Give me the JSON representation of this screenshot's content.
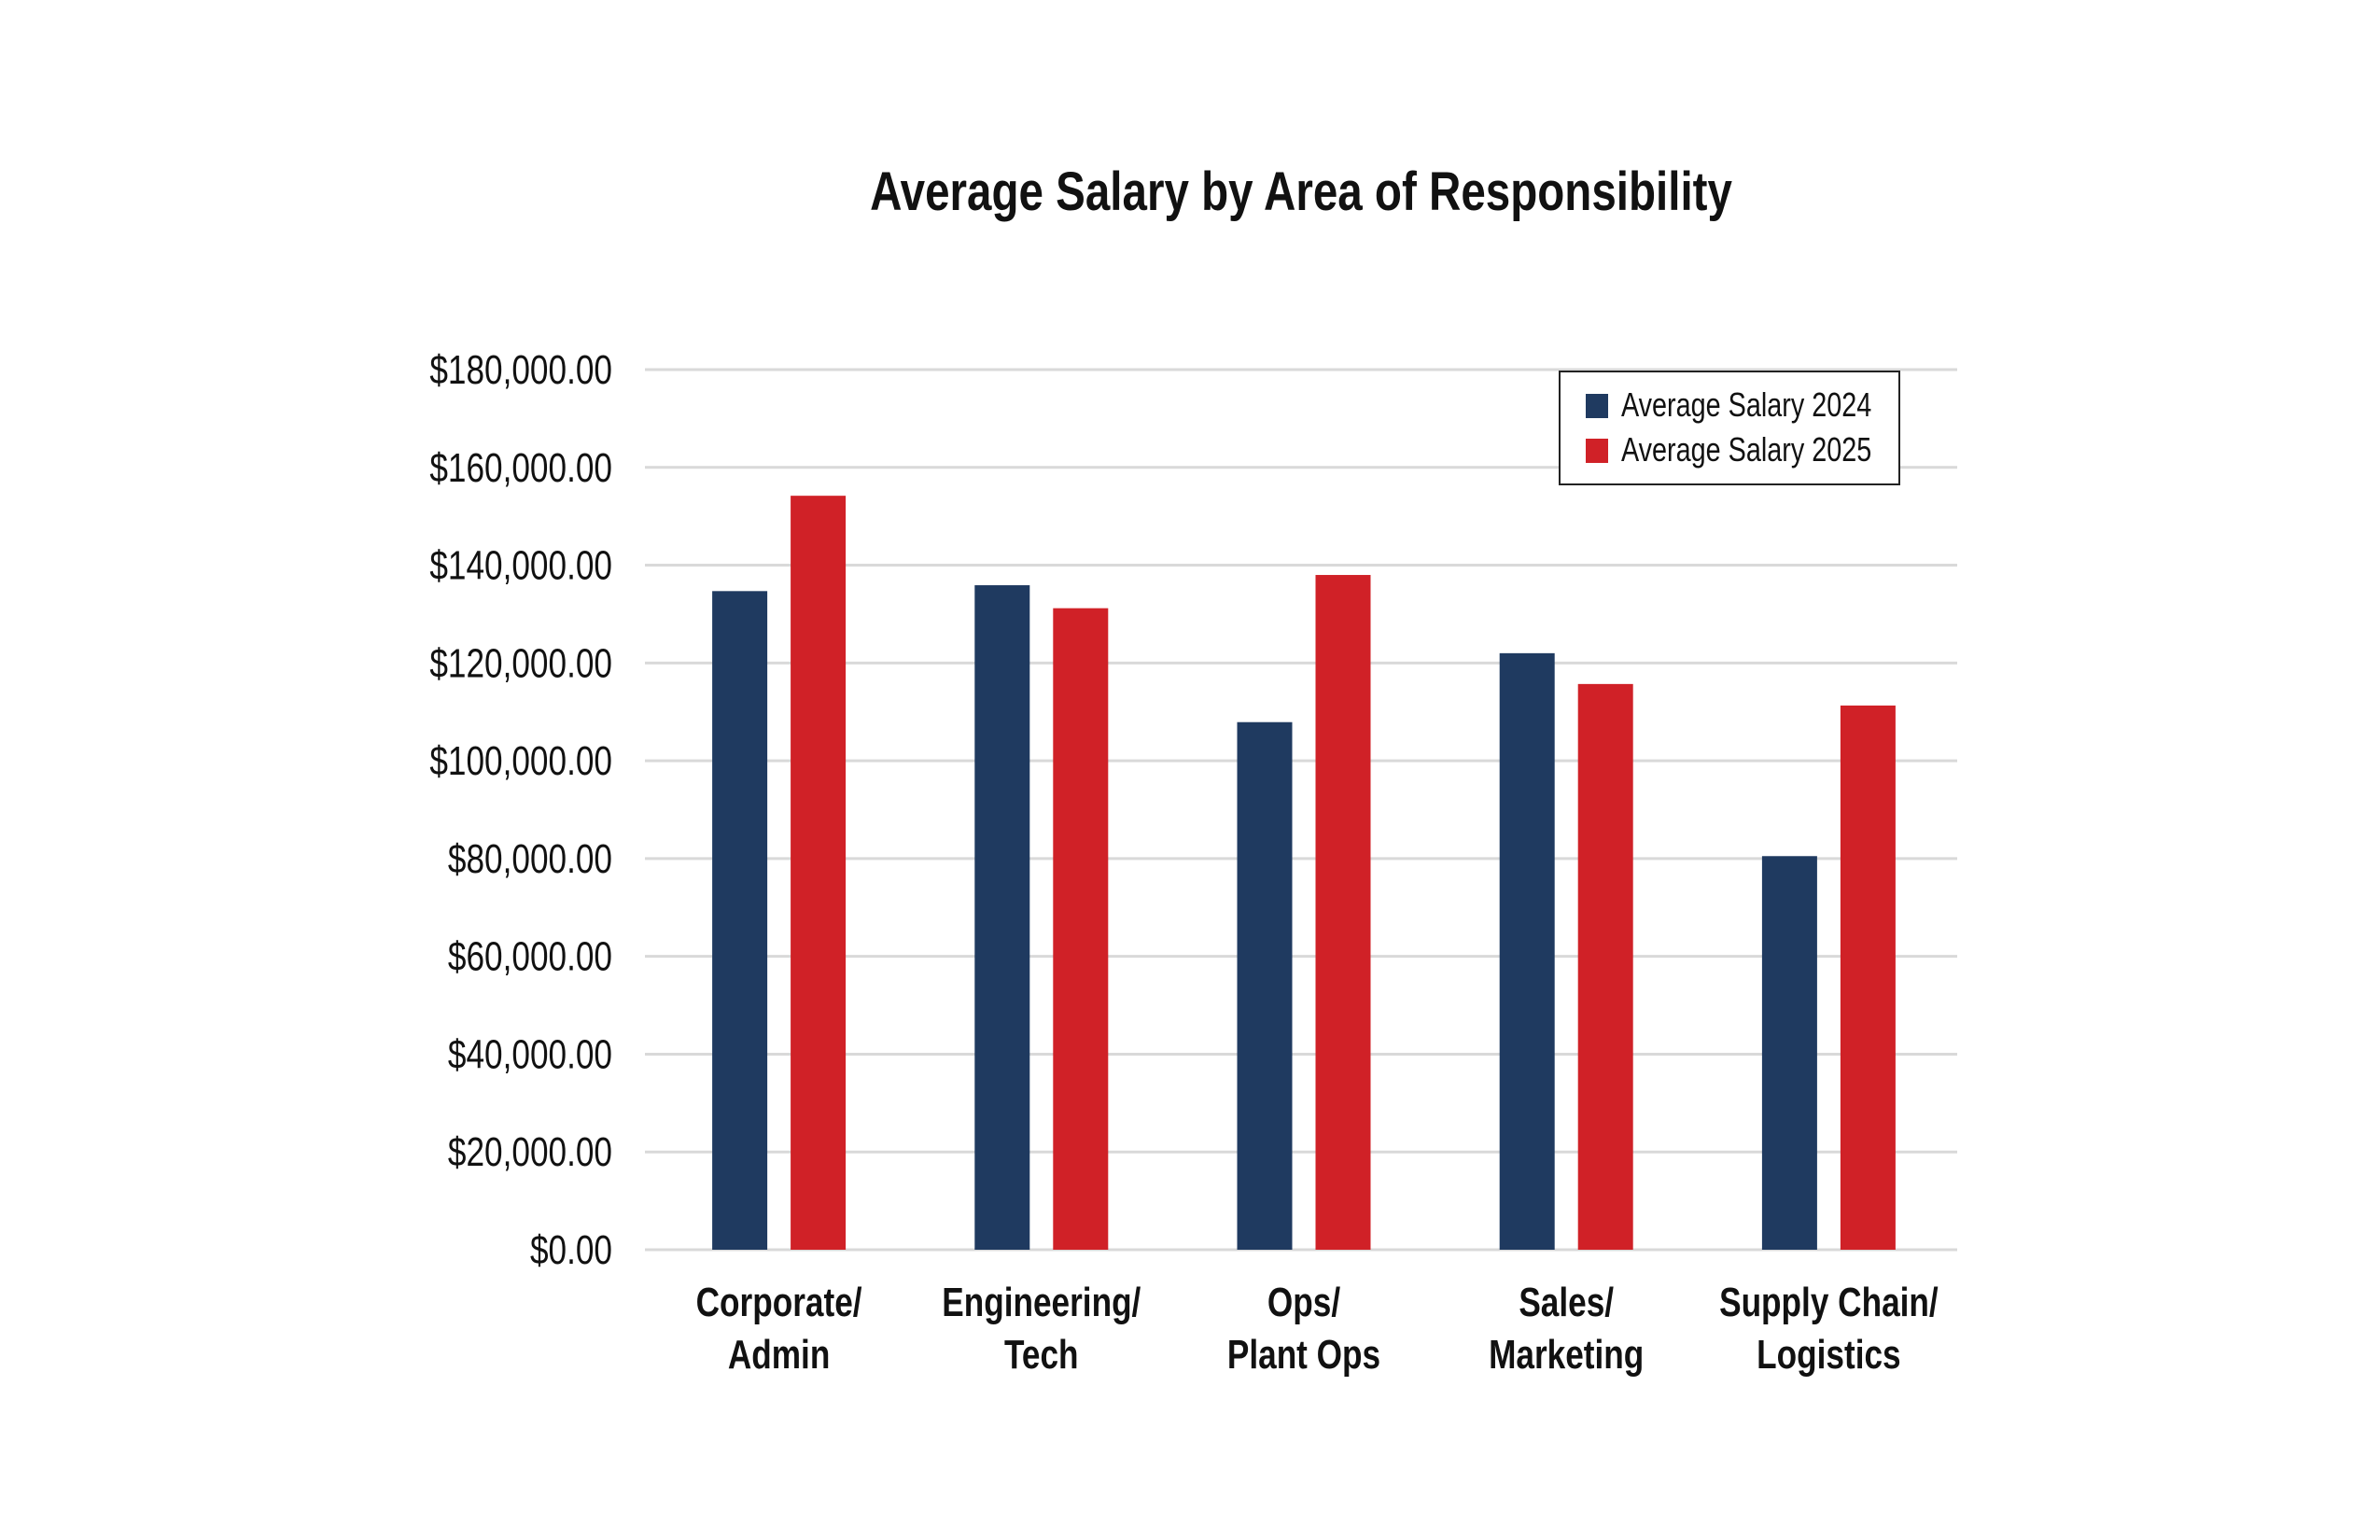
{
  "chart_data": {
    "type": "bar",
    "title": "Average Salary by Area of Responsibility",
    "xlabel": "",
    "ylabel": "",
    "categories": [
      [
        "Corporate/",
        "Admin"
      ],
      [
        "Engineering/",
        "Tech"
      ],
      [
        "Ops/",
        "Plant Ops"
      ],
      [
        "Sales/",
        "Marketing"
      ],
      [
        "Supply Chain/",
        "Logistics"
      ]
    ],
    "series": [
      {
        "name": "Average Salary 2024",
        "color": "#1f3a60",
        "values": [
          134700,
          135900,
          107900,
          122000,
          80500
        ]
      },
      {
        "name": "Average Salary 2025",
        "color": "#d02127",
        "values": [
          154200,
          131200,
          138000,
          115700,
          111300
        ]
      }
    ],
    "ylim": [
      0,
      180000
    ],
    "yticks": [
      0,
      20000,
      40000,
      60000,
      80000,
      100000,
      120000,
      140000,
      160000,
      180000
    ],
    "ytick_labels": [
      "$0.00",
      "$20,000.00",
      "$40,000.00",
      "$60,000.00",
      "$80,000.00",
      "$100,000.00",
      "$120,000.00",
      "$140,000.00",
      "$160,000.00",
      "$180,000.00"
    ],
    "grid": true,
    "legend": "top-right"
  }
}
